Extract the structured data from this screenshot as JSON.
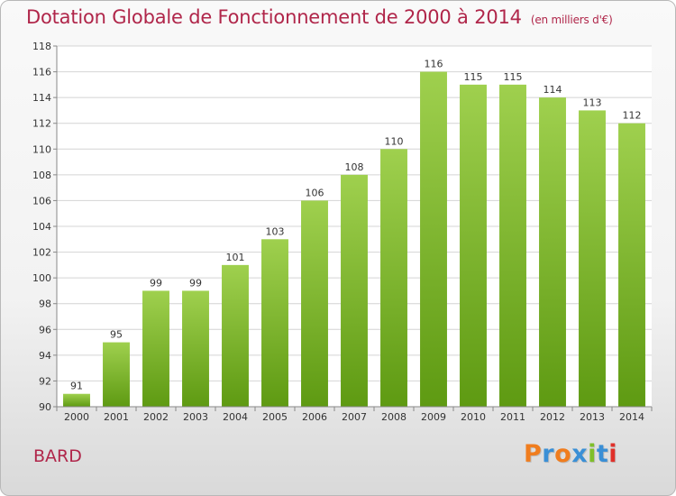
{
  "title": "Dotation Globale de Fonctionnement de 2000 à 2014",
  "title_unit": "(en milliers d'€)",
  "commune": "BARD",
  "logo": {
    "letters": [
      "P",
      "r",
      "o",
      "x",
      "i",
      "t",
      "i"
    ],
    "colors": [
      "#f07d1e",
      "#3a8fd6",
      "#f07d1e",
      "#3a8fd6",
      "#7fbf2a",
      "#3a8fd6",
      "#e0302a"
    ]
  },
  "chart_data": {
    "type": "bar",
    "title": "Dotation Globale de Fonctionnement de 2000 à 2014",
    "subtitle": "(en milliers d'€)",
    "categories": [
      "2000",
      "2001",
      "2002",
      "2003",
      "2004",
      "2005",
      "2006",
      "2007",
      "2008",
      "2009",
      "2010",
      "2011",
      "2012",
      "2013",
      "2014"
    ],
    "values": [
      91,
      95,
      99,
      99,
      101,
      103,
      106,
      108,
      110,
      116,
      115,
      115,
      114,
      113,
      112
    ],
    "ylim": [
      90,
      118
    ],
    "yticks": [
      90,
      92,
      94,
      96,
      98,
      100,
      102,
      104,
      106,
      108,
      110,
      112,
      114,
      116,
      118
    ],
    "grid": true,
    "bar_color": "#7cbb2c"
  }
}
